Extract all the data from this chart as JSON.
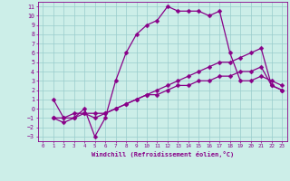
{
  "bg_color": "#cceee8",
  "grid_color": "#99cccc",
  "line_color": "#880088",
  "markersize": 2.5,
  "linewidth": 0.9,
  "xlabel": "Windchill (Refroidissement éolien,°C)",
  "xlim": [
    -0.5,
    23.5
  ],
  "ylim": [
    -3.5,
    11.5
  ],
  "xticks": [
    0,
    1,
    2,
    3,
    4,
    5,
    6,
    7,
    8,
    9,
    10,
    11,
    12,
    13,
    14,
    15,
    16,
    17,
    18,
    19,
    20,
    21,
    22,
    23
  ],
  "yticks": [
    -3,
    -2,
    -1,
    0,
    1,
    2,
    3,
    4,
    5,
    6,
    7,
    8,
    9,
    10,
    11
  ],
  "series": [
    [
      1,
      1,
      2,
      -1,
      3,
      -1,
      4,
      0,
      5,
      -3,
      6,
      -1,
      7,
      3,
      8,
      6,
      9,
      8,
      10,
      9,
      11,
      9.5,
      12,
      11,
      13,
      10.5,
      14,
      10.5,
      15,
      10.5,
      16,
      10,
      17,
      10.5,
      18,
      6,
      19,
      3,
      20,
      3,
      21,
      3.5,
      22,
      3,
      23,
      2.5
    ],
    [
      1,
      -1,
      2,
      -1,
      3,
      -0.5,
      4,
      -0.5,
      5,
      -1,
      6,
      -0.5,
      7,
      0,
      8,
      0.5,
      9,
      1,
      10,
      1.5,
      11,
      2,
      12,
      2.5,
      13,
      3,
      14,
      3.5,
      15,
      4,
      16,
      4.5,
      17,
      5,
      18,
      5,
      19,
      5.5,
      20,
      6,
      21,
      6.5,
      22,
      2.5,
      23,
      2
    ],
    [
      1,
      -1,
      2,
      -1.5,
      3,
      -1,
      4,
      -0.5,
      5,
      -0.5,
      6,
      -0.5,
      7,
      0,
      8,
      0.5,
      9,
      1,
      10,
      1.5,
      11,
      1.5,
      12,
      2,
      13,
      2.5,
      14,
      2.5,
      15,
      3,
      16,
      3,
      17,
      3.5,
      18,
      3.5,
      19,
      4,
      20,
      4,
      21,
      4.5,
      22,
      2.5,
      23,
      2
    ]
  ]
}
